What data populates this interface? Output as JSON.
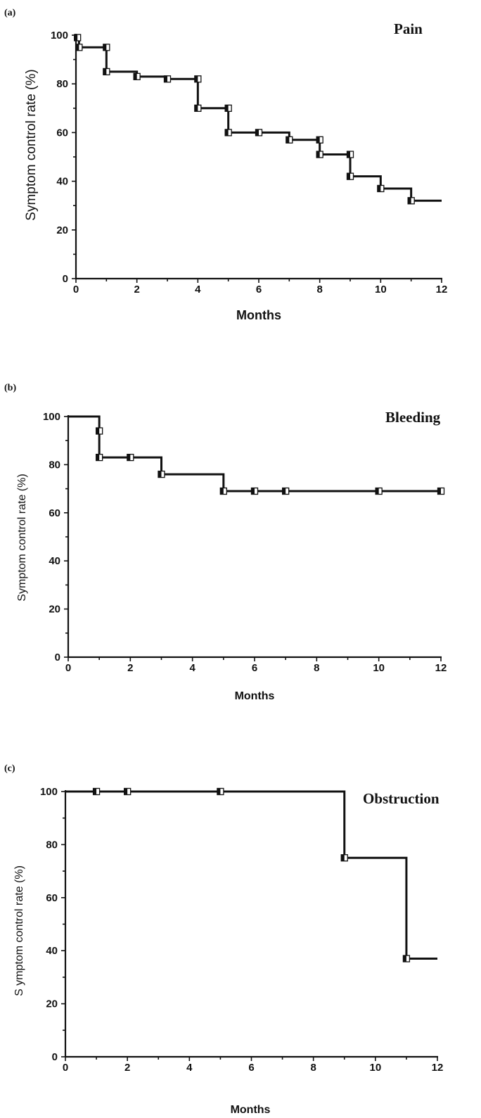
{
  "chart_data": [
    {
      "type": "line",
      "panel_label": "(a)",
      "title": "Pain",
      "xlabel": "Months",
      "ylabel": "Symptom control rate (%)",
      "xlim": [
        0,
        12
      ],
      "ylim": [
        0,
        100
      ],
      "x_ticks": [
        0,
        2,
        4,
        6,
        8,
        10,
        12
      ],
      "y_ticks": [
        0,
        20,
        40,
        60,
        80,
        100
      ],
      "grid": false,
      "step": [
        {
          "x": 0,
          "y": 100
        },
        {
          "x": 0.1,
          "y": 95
        },
        {
          "x": 1,
          "y": 85
        },
        {
          "x": 2,
          "y": 83
        },
        {
          "x": 3,
          "y": 82
        },
        {
          "x": 4,
          "y": 70
        },
        {
          "x": 5,
          "y": 60
        },
        {
          "x": 7,
          "y": 57
        },
        {
          "x": 8,
          "y": 51
        },
        {
          "x": 9,
          "y": 42
        },
        {
          "x": 10,
          "y": 37
        },
        {
          "x": 11,
          "y": 32
        },
        {
          "x": 12,
          "y": 32
        }
      ],
      "markers": [
        {
          "x": 0.05,
          "y": 99
        },
        {
          "x": 0.1,
          "y": 95
        },
        {
          "x": 1,
          "y": 95
        },
        {
          "x": 1,
          "y": 85
        },
        {
          "x": 2,
          "y": 83
        },
        {
          "x": 3,
          "y": 82
        },
        {
          "x": 4,
          "y": 82
        },
        {
          "x": 4,
          "y": 70
        },
        {
          "x": 5,
          "y": 70
        },
        {
          "x": 5,
          "y": 60
        },
        {
          "x": 6,
          "y": 60
        },
        {
          "x": 7,
          "y": 57
        },
        {
          "x": 8,
          "y": 57
        },
        {
          "x": 8,
          "y": 51
        },
        {
          "x": 9,
          "y": 51
        },
        {
          "x": 9,
          "y": 42
        },
        {
          "x": 10,
          "y": 37
        },
        {
          "x": 11,
          "y": 32
        }
      ]
    },
    {
      "type": "line",
      "panel_label": "(b)",
      "title": "Bleeding",
      "xlabel": "Months",
      "ylabel": "Symptom control rate (%)",
      "xlim": [
        0,
        12
      ],
      "ylim": [
        0,
        100
      ],
      "x_ticks": [
        0,
        2,
        4,
        6,
        8,
        10,
        12
      ],
      "y_ticks": [
        0,
        20,
        40,
        60,
        80,
        100
      ],
      "grid": false,
      "step": [
        {
          "x": 0,
          "y": 100
        },
        {
          "x": 1,
          "y": 83
        },
        {
          "x": 3,
          "y": 76
        },
        {
          "x": 5,
          "y": 69
        },
        {
          "x": 12,
          "y": 69
        }
      ],
      "markers": [
        {
          "x": 1,
          "y": 94
        },
        {
          "x": 1,
          "y": 83
        },
        {
          "x": 2,
          "y": 83
        },
        {
          "x": 3,
          "y": 76
        },
        {
          "x": 5,
          "y": 69
        },
        {
          "x": 6,
          "y": 69
        },
        {
          "x": 7,
          "y": 69
        },
        {
          "x": 10,
          "y": 69
        },
        {
          "x": 12,
          "y": 69
        }
      ]
    },
    {
      "type": "line",
      "panel_label": "(c)",
      "title": "Obstruction",
      "xlabel": "Months",
      "ylabel": "S ymptom control rate (%)",
      "xlim": [
        0,
        12
      ],
      "ylim": [
        0,
        100
      ],
      "x_ticks": [
        0,
        2,
        4,
        6,
        8,
        10,
        12
      ],
      "y_ticks": [
        0,
        20,
        40,
        60,
        80,
        100
      ],
      "grid": false,
      "step": [
        {
          "x": 0,
          "y": 100
        },
        {
          "x": 9,
          "y": 75
        },
        {
          "x": 11,
          "y": 37
        },
        {
          "x": 12,
          "y": 37
        }
      ],
      "markers": [
        {
          "x": 1,
          "y": 100
        },
        {
          "x": 2,
          "y": 100
        },
        {
          "x": 5,
          "y": 100
        },
        {
          "x": 9,
          "y": 75
        },
        {
          "x": 11,
          "y": 37
        }
      ]
    }
  ]
}
